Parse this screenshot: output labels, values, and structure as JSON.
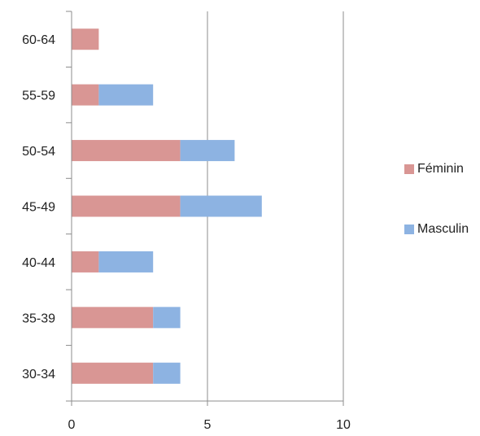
{
  "chart_data": {
    "type": "bar",
    "orientation": "horizontal",
    "stacked": true,
    "categories": [
      "30-34",
      "35-39",
      "40-44",
      "45-49",
      "50-54",
      "55-59",
      "60-64"
    ],
    "series": [
      {
        "name": "Féminin",
        "values": [
          3,
          3,
          1,
          4,
          4,
          1,
          1
        ],
        "color": "#d99694"
      },
      {
        "name": "Masculin",
        "values": [
          1,
          1,
          2,
          3,
          2,
          2,
          0
        ],
        "color": "#8db3e2"
      }
    ],
    "xlim": [
      0,
      10
    ],
    "x_ticks": [
      "0",
      "5",
      "10"
    ],
    "grid": "vertical major gridlines",
    "legend_position": "right"
  }
}
